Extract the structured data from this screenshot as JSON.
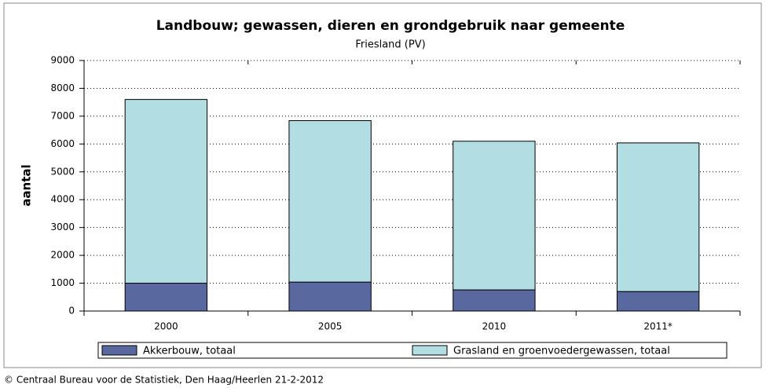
{
  "chart_data": {
    "type": "stacked_bar",
    "title": "Landbouw; gewassen, dieren en grondgebruik naar gemeente",
    "subtitle": "Friesland (PV)",
    "y_label": "aantal",
    "categories": [
      "2000",
      "2005",
      "2010",
      "2011*"
    ],
    "series": [
      {
        "name": "Akkerbouw, totaal",
        "color": "#5a68a0",
        "values": [
          1000,
          1040,
          760,
          700
        ]
      },
      {
        "name": "Grasland en groenvoedergewassen, totaal",
        "color": "#b2dde2",
        "values": [
          6600,
          5800,
          5340,
          5340
        ]
      }
    ],
    "ylim": [
      0,
      9000
    ],
    "yticks": [
      0,
      1000,
      2000,
      3000,
      4000,
      5000,
      6000,
      7000,
      8000,
      9000
    ],
    "grid": true,
    "legend": "bottom",
    "source": "© Centraal Bureau voor de Statistiek, Den Haag/Heerlen 21-2-2012"
  }
}
